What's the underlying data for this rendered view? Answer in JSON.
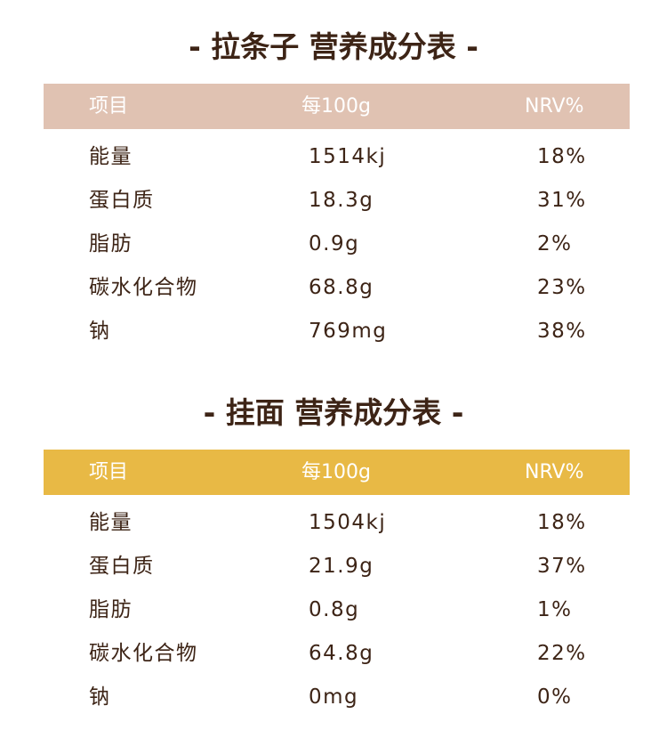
{
  "tables": [
    {
      "title": "- 拉条子 营养成分表 -",
      "header_color": "#e0c2b2",
      "headers": [
        "项目",
        "每100g",
        "NRV%"
      ],
      "rows": [
        [
          "能量",
          "1514kj",
          "18%"
        ],
        [
          "蛋白质",
          "18.3g",
          "31%"
        ],
        [
          "脂肪",
          "0.9g",
          "2%"
        ],
        [
          "碳水化合物",
          "68.8g",
          "23%"
        ],
        [
          "钠",
          "769mg",
          "38%"
        ]
      ]
    },
    {
      "title": "- 挂面 营养成分表 -",
      "header_color": "#e8b945",
      "headers": [
        "项目",
        "每100g",
        "NRV%"
      ],
      "rows": [
        [
          "能量",
          "1504kj",
          "18%"
        ],
        [
          "蛋白质",
          "21.9g",
          "37%"
        ],
        [
          "脂肪",
          "0.8g",
          "1%"
        ],
        [
          "碳水化合物",
          "64.8g",
          "22%"
        ],
        [
          "钠",
          "0mg",
          "0%"
        ]
      ]
    }
  ]
}
